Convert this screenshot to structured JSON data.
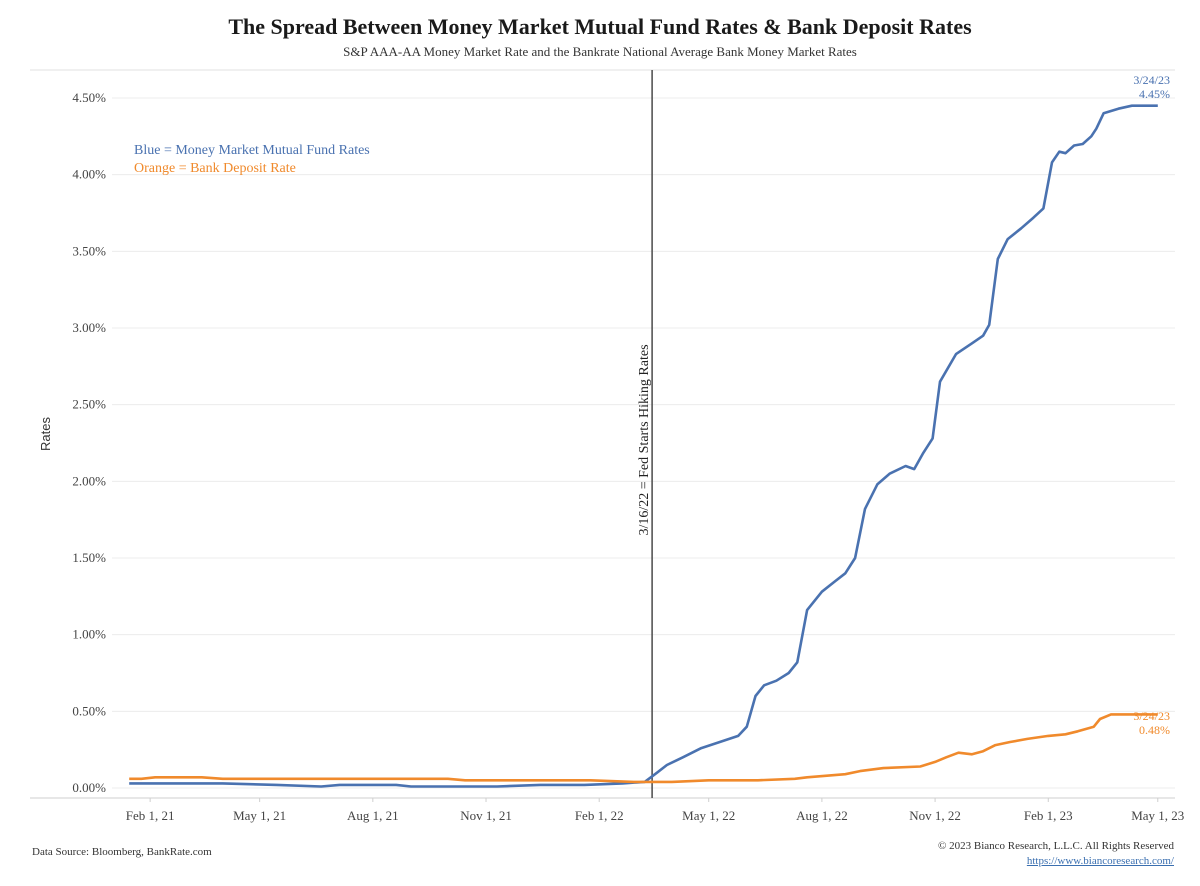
{
  "chart_data": {
    "type": "line",
    "title": "The Spread Between Money Market Mutual Fund Rates & Bank Deposit Rates",
    "subtitle": "S&P AAA-AA Money Market Rate and the Bankrate National Average Bank Money Market Rates",
    "ylabel": "Rates",
    "ylim": [
      0,
      4.5
    ],
    "yticks": [
      "0.00%",
      "0.50%",
      "1.00%",
      "1.50%",
      "2.00%",
      "2.50%",
      "3.00%",
      "3.50%",
      "4.00%",
      "4.50%"
    ],
    "xticks": [
      {
        "label": "Feb 1, 21",
        "date": "2021-02-01"
      },
      {
        "label": "May 1, 21",
        "date": "2021-05-01"
      },
      {
        "label": "Aug 1, 21",
        "date": "2021-08-01"
      },
      {
        "label": "Nov 1, 21",
        "date": "2021-11-01"
      },
      {
        "label": "Feb 1, 22",
        "date": "2022-02-01"
      },
      {
        "label": "May 1, 22",
        "date": "2022-05-01"
      },
      {
        "label": "Aug 1, 22",
        "date": "2022-08-01"
      },
      {
        "label": "Nov 1, 22",
        "date": "2022-11-01"
      },
      {
        "label": "Feb 1, 23",
        "date": "2023-02-01"
      },
      {
        "label": "May 1, 23",
        "date": "2023-05-01"
      }
    ],
    "grid": true,
    "legend_position": "top-left",
    "legend": [
      {
        "text": "Blue = Money Market Mutual Fund Rates",
        "color": "#4a72b0"
      },
      {
        "text": "Orange = Bank Deposit Rate",
        "color": "#f08a2c"
      }
    ],
    "vline": {
      "date": "2022-03-16",
      "label": "3/16/22 = Fed Starts Hiking Rates",
      "color": "#555555"
    },
    "series": [
      {
        "name": "Money Market Mutual Fund Rates",
        "color": "#4a72b0",
        "end_label": [
          "3/24/23",
          "4.45%"
        ],
        "points": [
          [
            "2021-01-15",
            0.03
          ],
          [
            "2021-02-15",
            0.03
          ],
          [
            "2021-04-01",
            0.03
          ],
          [
            "2021-05-15",
            0.02
          ],
          [
            "2021-06-20",
            0.01
          ],
          [
            "2021-07-05",
            0.02
          ],
          [
            "2021-08-20",
            0.02
          ],
          [
            "2021-09-01",
            0.01
          ],
          [
            "2021-11-10",
            0.01
          ],
          [
            "2021-12-15",
            0.02
          ],
          [
            "2022-01-20",
            0.02
          ],
          [
            "2022-02-20",
            0.03
          ],
          [
            "2022-03-10",
            0.04
          ],
          [
            "2022-03-20",
            0.1
          ],
          [
            "2022-03-28",
            0.15
          ],
          [
            "2022-04-10",
            0.2
          ],
          [
            "2022-04-25",
            0.26
          ],
          [
            "2022-05-10",
            0.3
          ],
          [
            "2022-05-25",
            0.34
          ],
          [
            "2022-06-01",
            0.4
          ],
          [
            "2022-06-08",
            0.6
          ],
          [
            "2022-06-15",
            0.67
          ],
          [
            "2022-06-25",
            0.7
          ],
          [
            "2022-07-05",
            0.75
          ],
          [
            "2022-07-12",
            0.82
          ],
          [
            "2022-07-20",
            1.16
          ],
          [
            "2022-08-01",
            1.28
          ],
          [
            "2022-08-12",
            1.35
          ],
          [
            "2022-08-20",
            1.4
          ],
          [
            "2022-08-28",
            1.5
          ],
          [
            "2022-09-05",
            1.82
          ],
          [
            "2022-09-15",
            1.98
          ],
          [
            "2022-09-25",
            2.05
          ],
          [
            "2022-10-08",
            2.1
          ],
          [
            "2022-10-15",
            2.08
          ],
          [
            "2022-10-22",
            2.18
          ],
          [
            "2022-10-30",
            2.28
          ],
          [
            "2022-11-05",
            2.65
          ],
          [
            "2022-11-18",
            2.83
          ],
          [
            "2022-12-01",
            2.9
          ],
          [
            "2022-12-10",
            2.95
          ],
          [
            "2022-12-15",
            3.02
          ],
          [
            "2022-12-22",
            3.45
          ],
          [
            "2022-12-30",
            3.58
          ],
          [
            "2023-01-10",
            3.65
          ],
          [
            "2023-01-20",
            3.72
          ],
          [
            "2023-01-28",
            3.78
          ],
          [
            "2023-02-04",
            4.08
          ],
          [
            "2023-02-10",
            4.15
          ],
          [
            "2023-02-15",
            4.14
          ],
          [
            "2023-02-22",
            4.19
          ],
          [
            "2023-03-01",
            4.2
          ],
          [
            "2023-03-08",
            4.25
          ],
          [
            "2023-03-12",
            4.3
          ],
          [
            "2023-03-18",
            4.4
          ],
          [
            "2023-03-30",
            4.43
          ],
          [
            "2023-04-10",
            4.45
          ],
          [
            "2023-05-01",
            4.45
          ]
        ]
      },
      {
        "name": "Bank Deposit Rate",
        "color": "#f08a2c",
        "end_label": [
          "3/24/23",
          "0.48%"
        ],
        "points": [
          [
            "2021-01-15",
            0.06
          ],
          [
            "2021-01-25",
            0.06
          ],
          [
            "2021-02-05",
            0.07
          ],
          [
            "2021-03-15",
            0.07
          ],
          [
            "2021-04-01",
            0.06
          ],
          [
            "2021-10-01",
            0.06
          ],
          [
            "2021-10-15",
            0.05
          ],
          [
            "2022-01-25",
            0.05
          ],
          [
            "2022-03-01",
            0.04
          ],
          [
            "2022-04-01",
            0.04
          ],
          [
            "2022-05-01",
            0.05
          ],
          [
            "2022-06-10",
            0.05
          ],
          [
            "2022-07-10",
            0.06
          ],
          [
            "2022-07-20",
            0.07
          ],
          [
            "2022-08-20",
            0.09
          ],
          [
            "2022-09-01",
            0.11
          ],
          [
            "2022-09-20",
            0.13
          ],
          [
            "2022-10-20",
            0.14
          ],
          [
            "2022-11-01",
            0.17
          ],
          [
            "2022-11-10",
            0.2
          ],
          [
            "2022-11-20",
            0.23
          ],
          [
            "2022-12-01",
            0.22
          ],
          [
            "2022-12-10",
            0.24
          ],
          [
            "2022-12-20",
            0.28
          ],
          [
            "2023-01-01",
            0.3
          ],
          [
            "2023-01-15",
            0.32
          ],
          [
            "2023-02-01",
            0.34
          ],
          [
            "2023-02-15",
            0.35
          ],
          [
            "2023-02-25",
            0.37
          ],
          [
            "2023-03-10",
            0.4
          ],
          [
            "2023-03-15",
            0.45
          ],
          [
            "2023-03-24",
            0.48
          ],
          [
            "2023-05-01",
            0.48
          ]
        ]
      }
    ]
  },
  "footer": {
    "source": "Data Source: Bloomberg, BankRate.com",
    "copyright": "© 2023 Bianco Research, L.L.C. All Rights Reserved",
    "url": "https://www.biancoresearch.com/"
  }
}
